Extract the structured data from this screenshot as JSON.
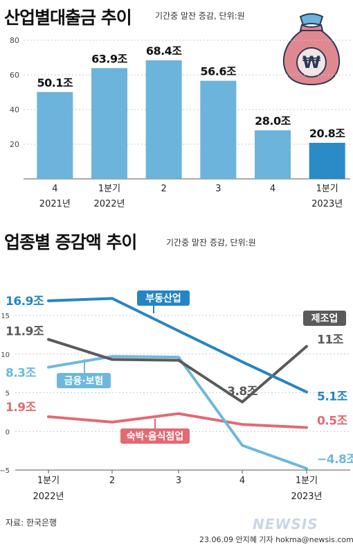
{
  "section1": {
    "title": "산업별대출금 추이",
    "subtitle": "기간중 말잔 증감, 단위:원"
  },
  "section2": {
    "title": "업종별 증감액 추이",
    "subtitle": "기간중 말잔 증감, 단위:원"
  },
  "source": "자료: 한국은행",
  "credit": "23.06.09 안지혜 기자 hokma@newsis.com",
  "watermark": "NEWSIS",
  "colors": {
    "bar": "#6cb4dc",
    "bar_highlight": "#2a8bc6",
    "real_estate": "#2585c4",
    "manufacturing": "#5a5a5a",
    "finance": "#6cb8de",
    "food_lodging": "#e26a72"
  },
  "icon": "money-bag-won-icon",
  "chart_data": [
    {
      "type": "bar",
      "title": "산업별대출금 추이",
      "categories": [
        "4\n2021년",
        "1분기\n2022년",
        "2",
        "3",
        "4",
        "1분기\n2023년"
      ],
      "x_ticks": [
        {
          "top": "4",
          "bottom": "2021년"
        },
        {
          "top": "1분기",
          "bottom": "2022년"
        },
        {
          "top": "2",
          "bottom": ""
        },
        {
          "top": "3",
          "bottom": ""
        },
        {
          "top": "4",
          "bottom": ""
        },
        {
          "top": "1분기",
          "bottom": "2023년"
        }
      ],
      "values": [
        50.1,
        63.9,
        68.4,
        56.6,
        28.0,
        20.8
      ],
      "value_labels": [
        "50.1조",
        "63.9조",
        "68.4조",
        "56.6조",
        "28.0조",
        "20.8조"
      ],
      "ylim": [
        0,
        80
      ],
      "yticks": [
        20,
        40,
        60,
        80
      ],
      "grid": true
    },
    {
      "type": "line",
      "title": "업종별 증감액 추이",
      "x_ticks": [
        {
          "top": "1분기",
          "bottom": "2022년"
        },
        {
          "top": "2",
          "bottom": ""
        },
        {
          "top": "3",
          "bottom": ""
        },
        {
          "top": "4",
          "bottom": ""
        },
        {
          "top": "1분기",
          "bottom": "2023년"
        }
      ],
      "ylim": [
        -5,
        15
      ],
      "yticks": [
        -5,
        0,
        5,
        10,
        15
      ],
      "grid": true,
      "series": [
        {
          "name": "부동산업",
          "key": "real_estate",
          "values": [
            16.9,
            17.2,
            13.0,
            9.0,
            5.1
          ],
          "start_label": "16.9조",
          "end_label": "5.1조"
        },
        {
          "name": "제조업",
          "key": "manufacturing",
          "values": [
            11.9,
            9.3,
            9.2,
            3.8,
            11.0
          ],
          "start_label": "11.9조",
          "mid_label": "3.8조",
          "end_label": "11조"
        },
        {
          "name": "금융·보험",
          "key": "finance",
          "values": [
            8.3,
            9.7,
            9.6,
            -1.8,
            -4.8
          ],
          "start_label": "8.3조",
          "end_label": "−4.8조"
        },
        {
          "name": "숙박·음식점업",
          "key": "food_lodging",
          "values": [
            1.9,
            1.2,
            2.3,
            0.9,
            0.5
          ],
          "start_label": "1.9조",
          "end_label": "0.5조"
        }
      ]
    }
  ]
}
